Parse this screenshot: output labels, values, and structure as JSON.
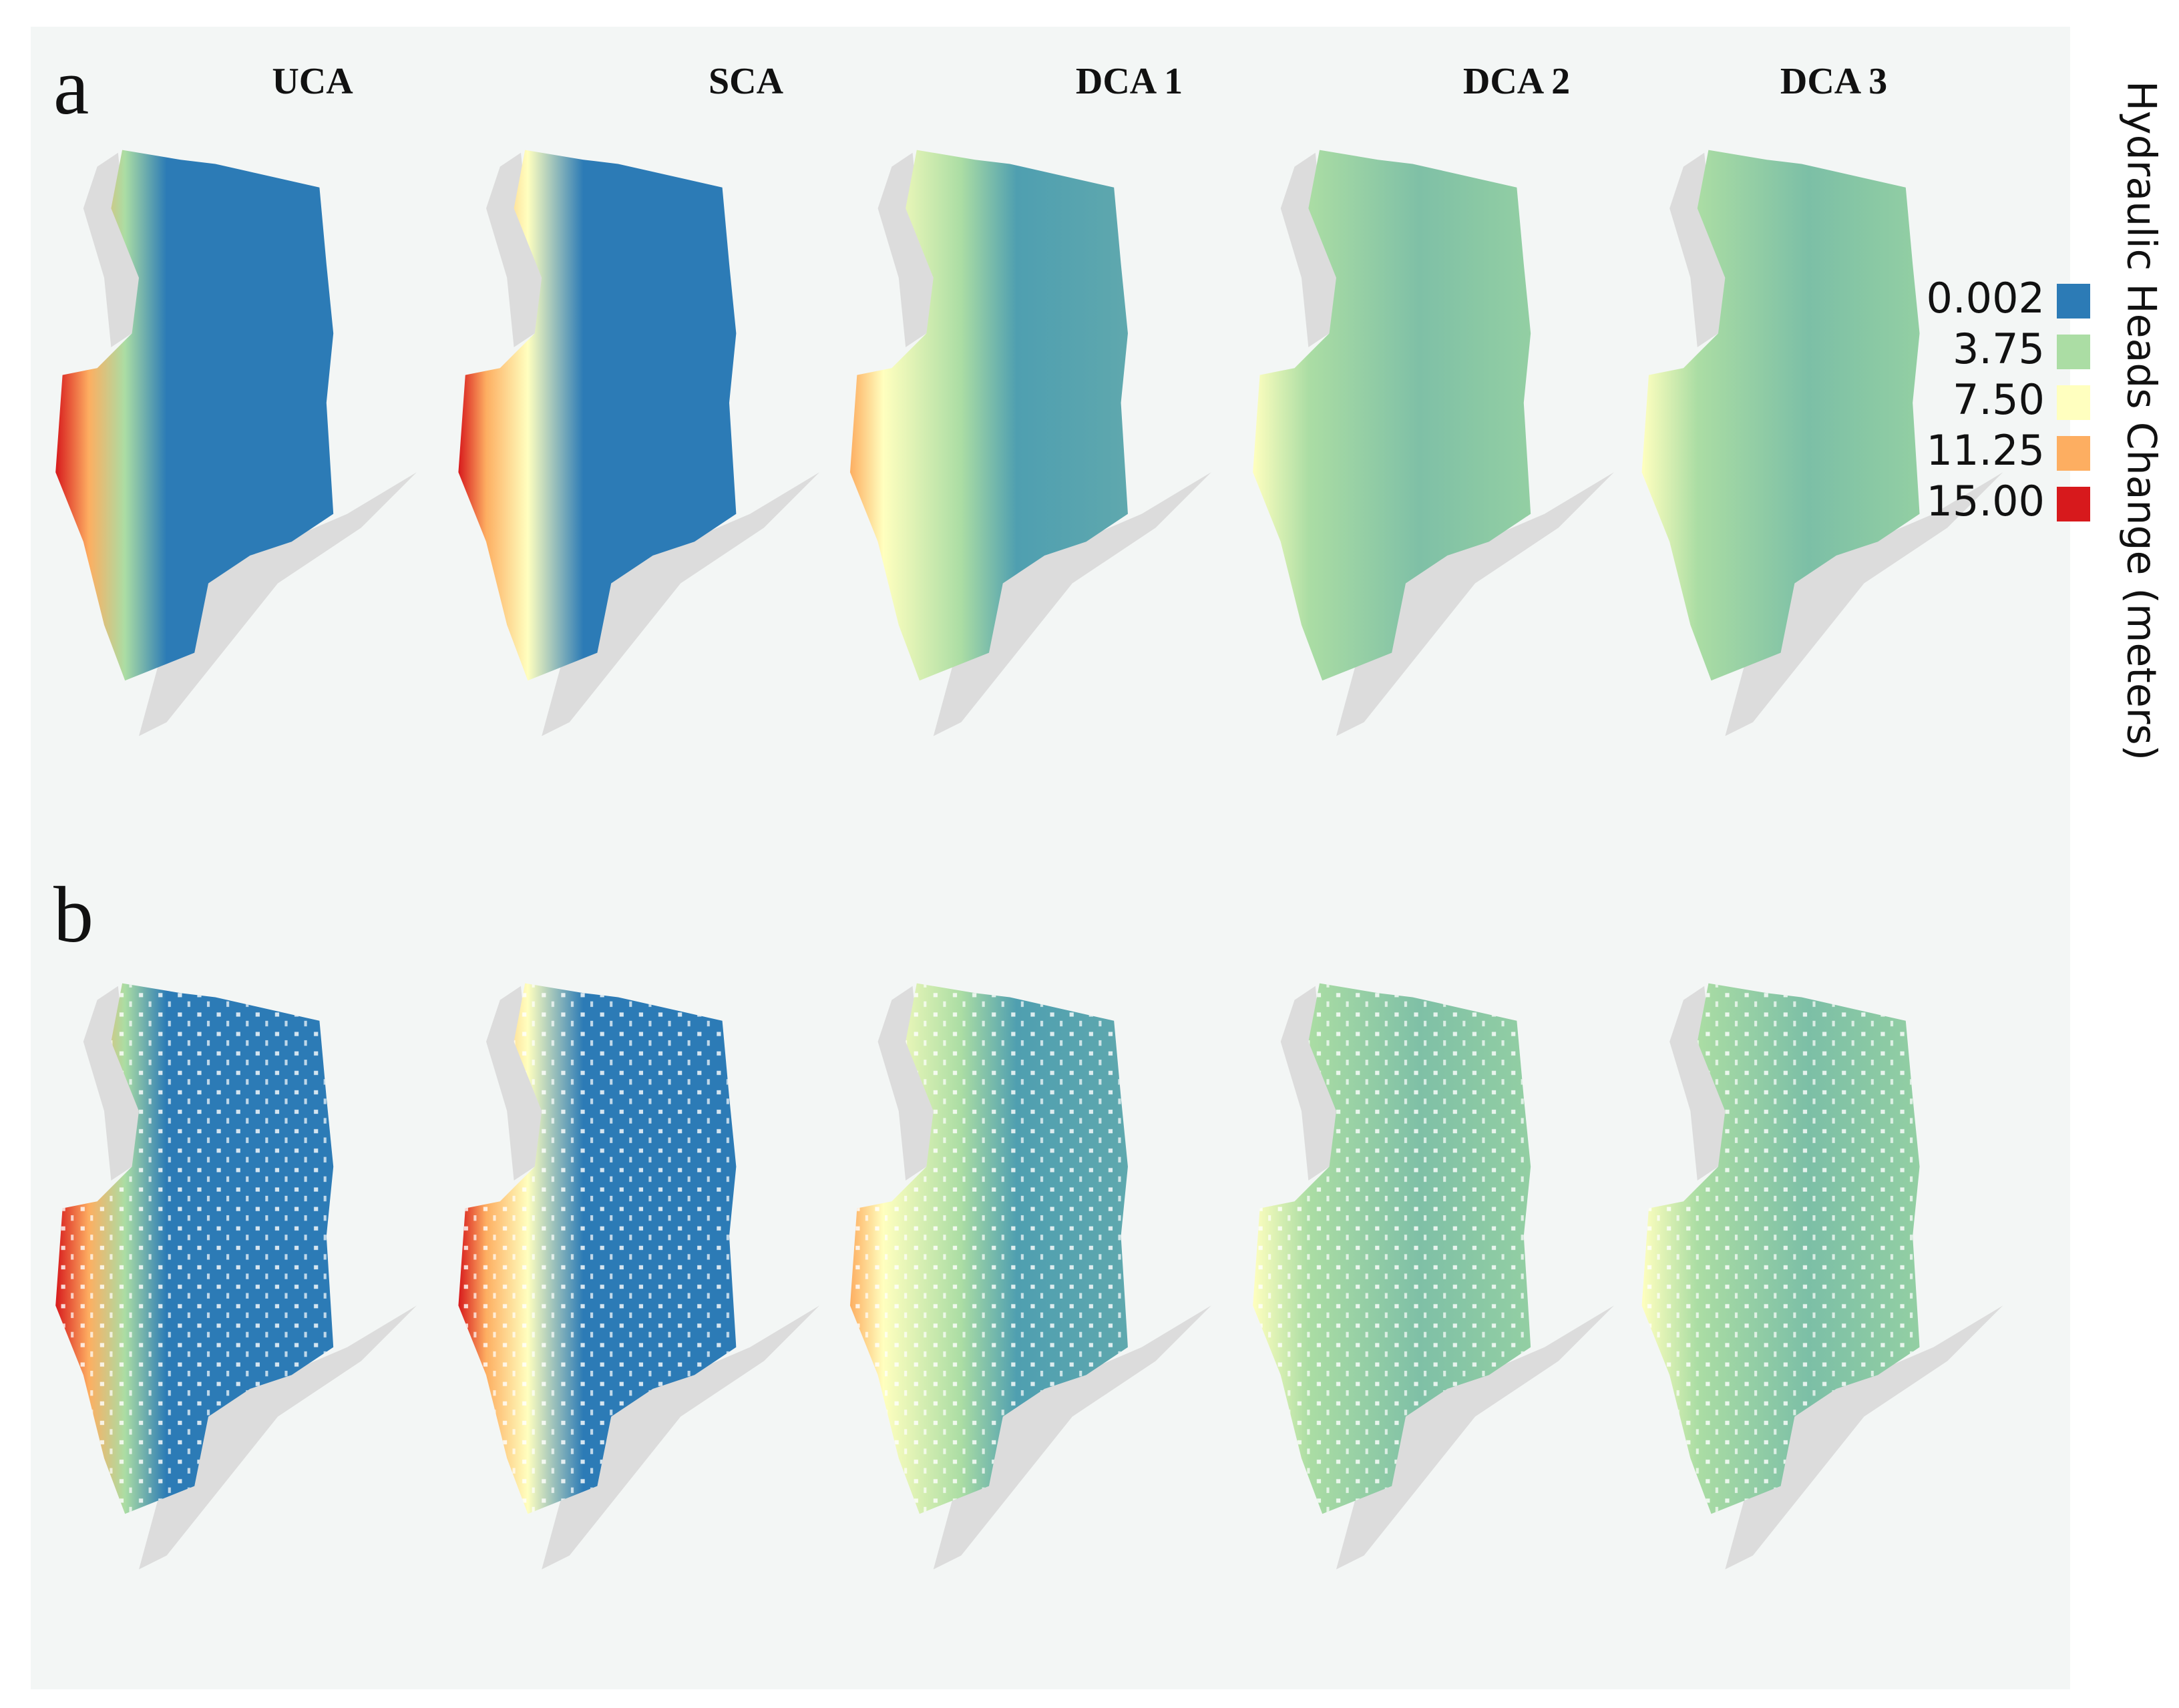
{
  "panels": [
    "a",
    "b"
  ],
  "columns": [
    "UCA",
    "SCA",
    "DCA 1",
    "DCA 2",
    "DCA 3"
  ],
  "legend": {
    "title": "Hydraulic Heads Change (meters)",
    "ticks": [
      0.002,
      3.75,
      {
        "value": 7.5,
        "label": "7.50"
      },
      11.25,
      {
        "value": 15,
        "label": "15.00"
      }
    ],
    "colors": [
      "#2c7bb6",
      "#abdda4",
      "#ffffbf",
      "#fdae61",
      "#d7191c"
    ]
  }
}
